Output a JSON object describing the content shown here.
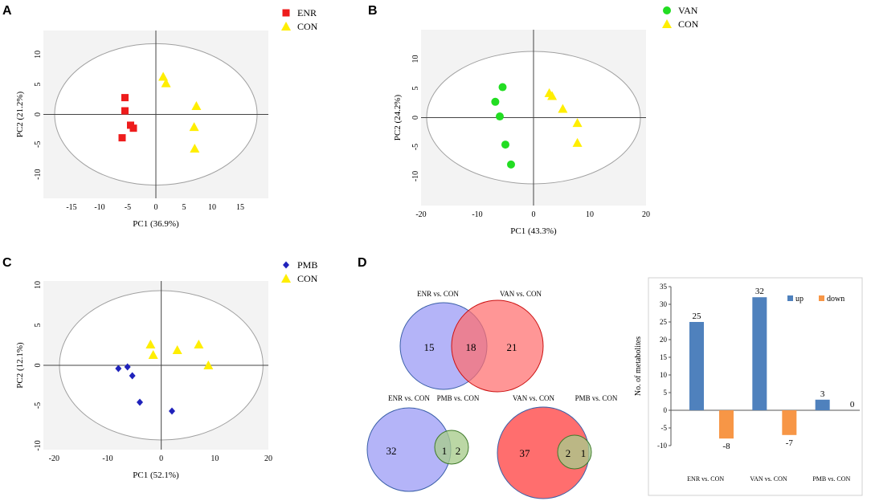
{
  "colors": {
    "enr": "#ee1c1c",
    "van": "#22dd22",
    "pmb": "#1f22bb",
    "con": "#ffee00",
    "up": "#4f81bd",
    "down": "#f79646",
    "venn_blue": "#b4b4f8",
    "venn_red": "#ff6e6e",
    "venn_green": "#a8cc8c",
    "plot_bg": "#f3f3f3",
    "ellipse": "#a0a0a0"
  },
  "chart_data": [
    {
      "type": "scatter",
      "panel": "A",
      "xlabel": "PC1 (36.9%)",
      "ylabel": "PC2 (21.2%)",
      "xlim": [
        -20,
        20
      ],
      "ylim": [
        -14,
        14
      ],
      "xticks": [
        -15,
        -10,
        -5,
        0,
        5,
        10,
        15
      ],
      "yticks": [
        -10,
        -5,
        0,
        5,
        10
      ],
      "ellipse": {
        "rx": 18.0,
        "ry": 11.8
      },
      "series": [
        {
          "name": "ENR",
          "marker": "square",
          "color_key": "enr",
          "points": [
            [
              -5.5,
              2.8
            ],
            [
              -5.5,
              0.6
            ],
            [
              -4.5,
              -1.8
            ],
            [
              -4.0,
              -2.3
            ],
            [
              -6.0,
              -3.9
            ]
          ]
        },
        {
          "name": "CON",
          "marker": "triangle",
          "color_key": "con",
          "points": [
            [
              1.3,
              6.3
            ],
            [
              1.8,
              5.2
            ],
            [
              7.2,
              1.4
            ],
            [
              6.8,
              -2.1
            ],
            [
              6.9,
              -5.7
            ]
          ]
        }
      ]
    },
    {
      "type": "scatter",
      "panel": "B",
      "xlabel": "PC1 (43.3%)",
      "ylabel": "PC2 (24.2%)",
      "xlim": [
        -20,
        20
      ],
      "ylim": [
        -15,
        15
      ],
      "xticks": [
        -20,
        -10,
        0,
        10,
        20
      ],
      "yticks": [
        -10,
        -5,
        0,
        5,
        10
      ],
      "ellipse": {
        "rx": 19.0,
        "ry": 11.3
      },
      "series": [
        {
          "name": "VAN",
          "marker": "circle",
          "color_key": "van",
          "points": [
            [
              -5.5,
              5.2
            ],
            [
              -6.8,
              2.7
            ],
            [
              -6.0,
              0.2
            ],
            [
              -5.0,
              -4.6
            ],
            [
              -4.0,
              -8.0
            ]
          ]
        },
        {
          "name": "CON",
          "marker": "triangle",
          "color_key": "con",
          "points": [
            [
              2.8,
              4.2
            ],
            [
              3.3,
              3.7
            ],
            [
              5.2,
              1.5
            ],
            [
              7.8,
              -0.9
            ],
            [
              7.8,
              -4.3
            ]
          ]
        }
      ]
    },
    {
      "type": "scatter",
      "panel": "C",
      "xlabel": "PC1 (52.1%)",
      "ylabel": "PC2 (12.1%)",
      "xlim": [
        -22,
        20
      ],
      "ylim": [
        -10.5,
        10.5
      ],
      "xticks": [
        -20,
        -10,
        0,
        10,
        20
      ],
      "yticks": [
        -10,
        -5,
        0,
        5,
        10
      ],
      "ellipse": {
        "rx": 19.0,
        "ry": 9.3
      },
      "series": [
        {
          "name": "PMB",
          "marker": "diamond",
          "color_key": "pmb",
          "points": [
            [
              -8.0,
              -0.4
            ],
            [
              -6.3,
              -0.2
            ],
            [
              -5.4,
              -1.3
            ],
            [
              -4.0,
              -4.6
            ],
            [
              2.0,
              -5.7
            ]
          ]
        },
        {
          "name": "CON",
          "marker": "triangle",
          "color_key": "con",
          "points": [
            [
              -2.0,
              2.6
            ],
            [
              -1.5,
              1.3
            ],
            [
              3.0,
              1.9
            ],
            [
              7.0,
              2.6
            ],
            [
              8.8,
              0.0
            ]
          ]
        }
      ]
    },
    {
      "type": "bar",
      "panel": "D",
      "ylabel": "No. of metabolites",
      "ylim": [
        -10,
        35
      ],
      "yticks": [
        -10,
        -5,
        0,
        5,
        10,
        15,
        20,
        25,
        30,
        35
      ],
      "categories": [
        {
          "a": "ENR",
          "b": "CON"
        },
        {
          "a": "VAN",
          "b": "CON"
        },
        {
          "a": "PMB",
          "b": "CON"
        }
      ],
      "vs": "vs.",
      "series": [
        {
          "name": "up",
          "color_key": "up",
          "values": [
            25,
            32,
            3
          ]
        },
        {
          "name": "down",
          "color_key": "down",
          "values": [
            -8,
            -7,
            0
          ]
        }
      ]
    }
  ],
  "venn": {
    "top": {
      "left_label": {
        "a": "ENR",
        "b": "CON"
      },
      "right_label": {
        "a": "VAN",
        "b": "CON"
      },
      "left_only": "15",
      "both": "18",
      "right_only": "21"
    },
    "bottom_left": {
      "left_label": {
        "a": "ENR",
        "b": "CON"
      },
      "right_label": {
        "a": "PMB",
        "b": "CON"
      },
      "left_only": "32",
      "both": "1",
      "right_only": "2"
    },
    "bottom_right": {
      "left_label": {
        "a": "VAN",
        "b": "CON"
      },
      "right_label": {
        "a": "PMB",
        "b": "CON"
      },
      "left_only": "37",
      "both": "2",
      "right_only": "1"
    },
    "vs": "vs."
  },
  "panels": {
    "a": "A",
    "b": "B",
    "c": "C",
    "d": "D"
  }
}
